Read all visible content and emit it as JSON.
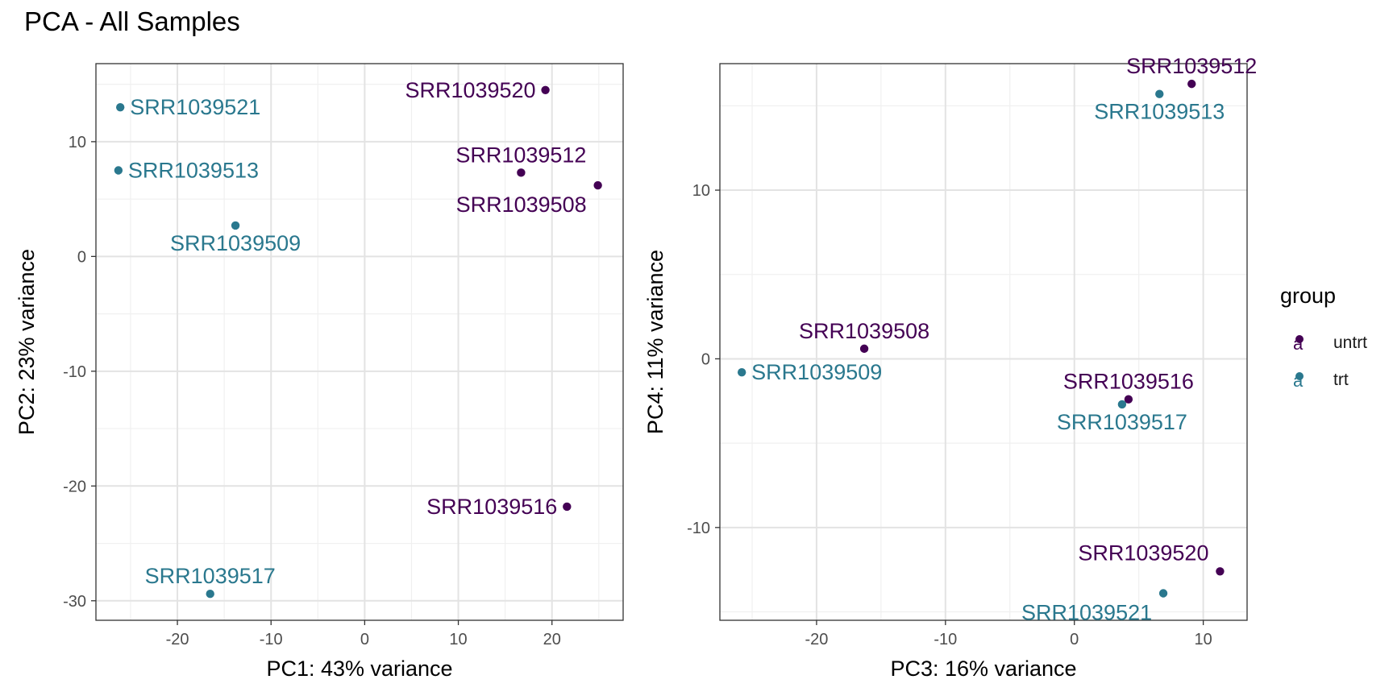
{
  "title": "PCA - All Samples",
  "colors": {
    "untrt": "#440154",
    "trt": "#2A788E"
  },
  "legend": {
    "title": "group",
    "items": [
      {
        "label": "untrt",
        "group": "untrt",
        "glyph": "a"
      },
      {
        "label": "trt",
        "group": "trt",
        "glyph": "a"
      }
    ]
  },
  "chart_data": [
    {
      "type": "scatter",
      "xlabel": "PC1: 43% variance",
      "ylabel": "PC2: 23% variance",
      "xlim": [
        -28.7,
        27.6
      ],
      "ylim": [
        -31.7,
        16.8
      ],
      "xticks": [
        -20,
        -10,
        0,
        10,
        20
      ],
      "xtick_labels": [
        "-20",
        "-10",
        "0",
        "10",
        "20"
      ],
      "yticks": [
        -30,
        -20,
        -10,
        0,
        10
      ],
      "ytick_labels": [
        "-30",
        "-20",
        "-10",
        "0",
        "10"
      ],
      "grid": true,
      "points": [
        {
          "label": "SRR1039520",
          "group": "untrt",
          "x": 19.3,
          "y": 14.5,
          "anchor": "end"
        },
        {
          "label": "SRR1039512",
          "group": "untrt",
          "x": 16.7,
          "y": 7.3,
          "anchor": "above"
        },
        {
          "label": "SRR1039508",
          "group": "untrt",
          "x": 24.9,
          "y": 6.2,
          "anchor": "below-left"
        },
        {
          "label": "SRR1039516",
          "group": "untrt",
          "x": 21.6,
          "y": -21.8,
          "anchor": "end"
        },
        {
          "label": "SRR1039521",
          "group": "trt",
          "x": -26.1,
          "y": 13.0,
          "anchor": "start"
        },
        {
          "label": "SRR1039513",
          "group": "trt",
          "x": -26.3,
          "y": 7.5,
          "anchor": "start"
        },
        {
          "label": "SRR1039509",
          "group": "trt",
          "x": -13.8,
          "y": 2.7,
          "anchor": "below"
        },
        {
          "label": "SRR1039517",
          "group": "trt",
          "x": -16.5,
          "y": -29.4,
          "anchor": "above"
        }
      ]
    },
    {
      "type": "scatter",
      "xlabel": "PC3: 16% variance",
      "ylabel": "PC4: 11% variance",
      "xlim": [
        -27.5,
        13.4
      ],
      "ylim": [
        -15.5,
        17.5
      ],
      "xticks": [
        -20,
        -10,
        0,
        10
      ],
      "xtick_labels": [
        "-20",
        "-10",
        "0",
        "10"
      ],
      "yticks": [
        -10,
        0,
        10
      ],
      "ytick_labels": [
        "-10",
        "0",
        "10"
      ],
      "grid": true,
      "points": [
        {
          "label": "SRR1039512",
          "group": "untrt",
          "x": 9.1,
          "y": 16.3,
          "anchor": "above"
        },
        {
          "label": "SRR1039513",
          "group": "trt",
          "x": 6.6,
          "y": 15.7,
          "anchor": "below"
        },
        {
          "label": "SRR1039508",
          "group": "untrt",
          "x": -16.3,
          "y": 0.6,
          "anchor": "above"
        },
        {
          "label": "SRR1039509",
          "group": "trt",
          "x": -25.8,
          "y": -0.8,
          "anchor": "start"
        },
        {
          "label": "SRR1039516",
          "group": "untrt",
          "x": 4.2,
          "y": -2.4,
          "anchor": "above"
        },
        {
          "label": "SRR1039517",
          "group": "trt",
          "x": 3.7,
          "y": -2.7,
          "anchor": "below"
        },
        {
          "label": "SRR1039520",
          "group": "untrt",
          "x": 11.3,
          "y": -12.6,
          "anchor": "above-left"
        },
        {
          "label": "SRR1039521",
          "group": "trt",
          "x": 6.9,
          "y": -13.9,
          "anchor": "below-left"
        }
      ]
    }
  ]
}
